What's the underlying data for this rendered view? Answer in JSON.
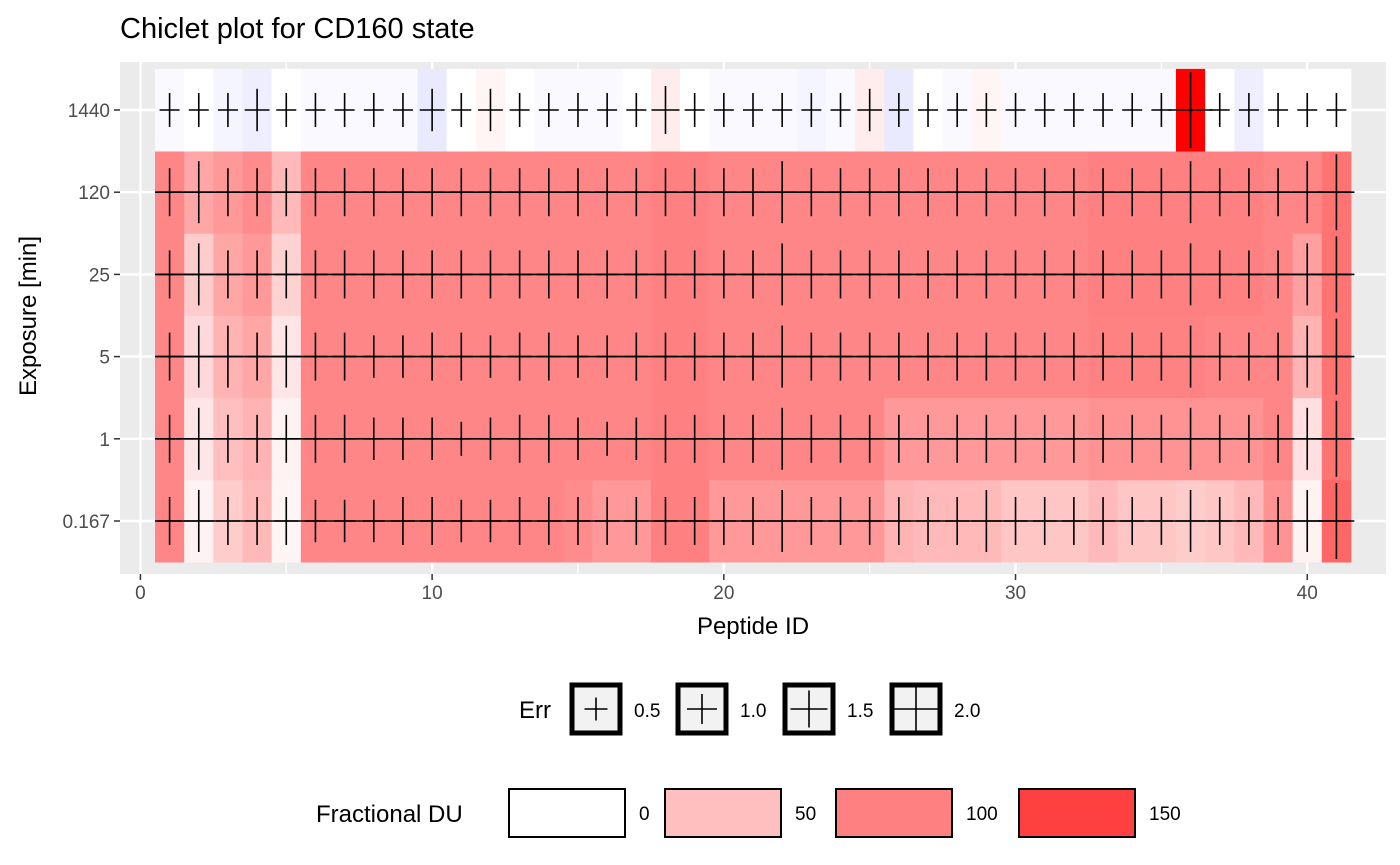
{
  "chart_data": {
    "type": "heatmap",
    "title": "Chiclet plot for CD160 state",
    "xlabel": "Peptide ID",
    "ylabel": "Exposure [min]",
    "x_ticks": [
      "0",
      "10",
      "20",
      "30",
      "40"
    ],
    "xlim": [
      -0.7,
      42.7
    ],
    "exposures": [
      "0.167",
      "1",
      "5",
      "25",
      "120",
      "1440"
    ],
    "peptide_ids": [
      1,
      2,
      3,
      4,
      5,
      6,
      7,
      8,
      9,
      10,
      11,
      12,
      13,
      14,
      15,
      16,
      17,
      18,
      19,
      20,
      21,
      22,
      23,
      24,
      25,
      26,
      27,
      28,
      29,
      30,
      31,
      32,
      33,
      34,
      35,
      36,
      37,
      38,
      39,
      40,
      41
    ],
    "frac_du": {
      "0.167": [
        95,
        10,
        40,
        55,
        8,
        95,
        95,
        95,
        95,
        95,
        95,
        95,
        95,
        95,
        90,
        80,
        80,
        100,
        100,
        80,
        80,
        80,
        80,
        80,
        80,
        60,
        55,
        55,
        55,
        45,
        45,
        45,
        55,
        45,
        45,
        40,
        45,
        55,
        85,
        10,
        120
      ],
      "1": [
        95,
        20,
        50,
        60,
        10,
        95,
        95,
        95,
        95,
        95,
        95,
        95,
        95,
        95,
        95,
        95,
        95,
        100,
        100,
        95,
        95,
        95,
        95,
        95,
        95,
        80,
        80,
        80,
        80,
        80,
        80,
        80,
        85,
        85,
        85,
        85,
        85,
        85,
        95,
        25,
        110
      ],
      "5": [
        95,
        30,
        60,
        70,
        20,
        95,
        95,
        95,
        95,
        95,
        95,
        95,
        95,
        95,
        95,
        95,
        95,
        100,
        100,
        95,
        95,
        95,
        95,
        95,
        95,
        95,
        95,
        95,
        95,
        95,
        95,
        95,
        98,
        98,
        98,
        98,
        95,
        95,
        95,
        60,
        110
      ],
      "25": [
        95,
        40,
        70,
        80,
        35,
        95,
        95,
        95,
        95,
        95,
        95,
        95,
        95,
        95,
        95,
        95,
        95,
        100,
        100,
        95,
        95,
        95,
        95,
        95,
        95,
        95,
        95,
        95,
        95,
        95,
        95,
        95,
        100,
        100,
        100,
        100,
        100,
        100,
        95,
        75,
        110
      ],
      "120": [
        95,
        70,
        80,
        90,
        55,
        95,
        95,
        95,
        95,
        95,
        95,
        95,
        95,
        95,
        95,
        95,
        95,
        100,
        100,
        95,
        95,
        95,
        95,
        95,
        95,
        95,
        95,
        95,
        95,
        95,
        95,
        95,
        100,
        100,
        100,
        100,
        100,
        100,
        95,
        95,
        110
      ],
      "1440": [
        -3,
        0,
        -5,
        -8,
        0,
        -3,
        -3,
        -3,
        -3,
        -10,
        0,
        8,
        0,
        -3,
        -3,
        -3,
        0,
        15,
        0,
        -3,
        -3,
        -3,
        -5,
        -3,
        15,
        -10,
        0,
        -3,
        8,
        -3,
        -3,
        -3,
        -3,
        -3,
        -3,
        200,
        0,
        -8,
        0,
        0,
        0
      ]
    },
    "err": {
      "0.167": [
        1.0,
        1.5,
        1.0,
        1.0,
        1.0,
        0.8,
        0.8,
        0.8,
        1.0,
        1.0,
        0.8,
        0.8,
        1.0,
        1.0,
        1.0,
        1.0,
        1.0,
        1.0,
        1.0,
        1.0,
        1.0,
        1.5,
        1.0,
        1.0,
        1.0,
        1.0,
        1.0,
        1.0,
        1.5,
        1.0,
        1.0,
        1.0,
        1.0,
        1.0,
        1.0,
        1.5,
        1.0,
        1.0,
        1.0,
        1.5,
        2.0
      ],
      "1": [
        1.0,
        1.5,
        1.0,
        1.0,
        1.0,
        1.0,
        1.0,
        0.8,
        0.8,
        0.8,
        0.5,
        0.8,
        1.0,
        1.0,
        0.8,
        0.5,
        0.8,
        1.0,
        1.0,
        1.0,
        1.0,
        1.5,
        1.0,
        1.0,
        1.0,
        1.0,
        1.0,
        1.0,
        1.0,
        1.0,
        1.0,
        1.0,
        1.0,
        1.0,
        1.0,
        1.5,
        1.0,
        1.0,
        1.0,
        1.5,
        2.0
      ],
      "5": [
        1.0,
        1.5,
        1.5,
        1.0,
        1.5,
        1.0,
        1.0,
        0.8,
        0.8,
        1.0,
        1.0,
        0.8,
        1.0,
        1.0,
        0.8,
        0.8,
        1.0,
        1.0,
        1.0,
        1.0,
        1.0,
        1.5,
        1.0,
        1.0,
        1.0,
        1.0,
        1.0,
        1.0,
        1.0,
        1.0,
        1.0,
        1.0,
        1.0,
        1.0,
        1.0,
        1.5,
        1.0,
        1.0,
        1.0,
        1.5,
        2.0
      ],
      "25": [
        1.0,
        1.5,
        1.0,
        1.0,
        1.0,
        1.0,
        1.0,
        1.0,
        1.0,
        1.0,
        1.0,
        1.0,
        1.0,
        1.0,
        1.0,
        1.0,
        1.0,
        1.0,
        1.0,
        1.0,
        1.0,
        1.5,
        1.0,
        1.0,
        1.0,
        1.0,
        1.0,
        1.0,
        1.0,
        1.0,
        1.0,
        1.0,
        1.0,
        1.0,
        1.0,
        1.5,
        1.0,
        1.0,
        1.0,
        1.5,
        2.0
      ],
      "120": [
        1.0,
        1.5,
        1.0,
        1.0,
        1.0,
        1.0,
        1.0,
        1.0,
        1.0,
        1.0,
        1.0,
        1.0,
        1.0,
        1.0,
        1.0,
        1.0,
        1.0,
        1.0,
        1.0,
        1.0,
        1.0,
        1.5,
        1.0,
        1.0,
        1.0,
        1.0,
        1.0,
        1.0,
        1.0,
        1.0,
        1.0,
        1.0,
        1.0,
        1.0,
        1.0,
        1.5,
        1.0,
        1.0,
        1.0,
        1.5,
        2.0
      ],
      "1440": [
        0.5,
        0.5,
        0.5,
        0.8,
        0.5,
        0.5,
        0.5,
        0.5,
        0.5,
        0.8,
        0.5,
        0.8,
        0.5,
        0.5,
        0.5,
        0.5,
        0.5,
        1.0,
        0.5,
        0.5,
        0.5,
        0.5,
        0.5,
        0.5,
        0.8,
        0.5,
        0.5,
        0.5,
        0.5,
        0.5,
        0.5,
        0.5,
        0.5,
        0.5,
        0.5,
        2.0,
        0.5,
        0.5,
        0.5,
        0.5,
        0.5
      ]
    },
    "legend_err": {
      "title": "Err",
      "values": [
        0.5,
        1.0,
        1.5,
        2.0
      ],
      "labels": [
        "0.5",
        "1.0",
        "1.5",
        "2.0"
      ]
    },
    "legend_fill": {
      "title": "Fractional DU",
      "values": [
        0,
        50,
        100,
        150
      ],
      "labels": [
        "0",
        "50",
        "100",
        "150"
      ]
    },
    "colors": {
      "low": "#2e2eff",
      "mid": "#ffffff",
      "high": "#ff0000",
      "panel": "#ebebeb",
      "grid": "#ffffff"
    },
    "legend_position": "bottom",
    "grid": true
  }
}
